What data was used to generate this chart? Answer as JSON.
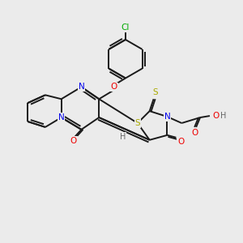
{
  "background_color": "#ebebeb",
  "bond_color": "#1a1a1a",
  "atom_colors": {
    "N": "#0000ee",
    "O": "#ee0000",
    "S": "#aaaa00",
    "Cl": "#00aa00",
    "H": "#666666",
    "C": "#1a1a1a"
  },
  "figsize": [
    3.0,
    3.0
  ],
  "dpi": 100,
  "lw": 1.4
}
